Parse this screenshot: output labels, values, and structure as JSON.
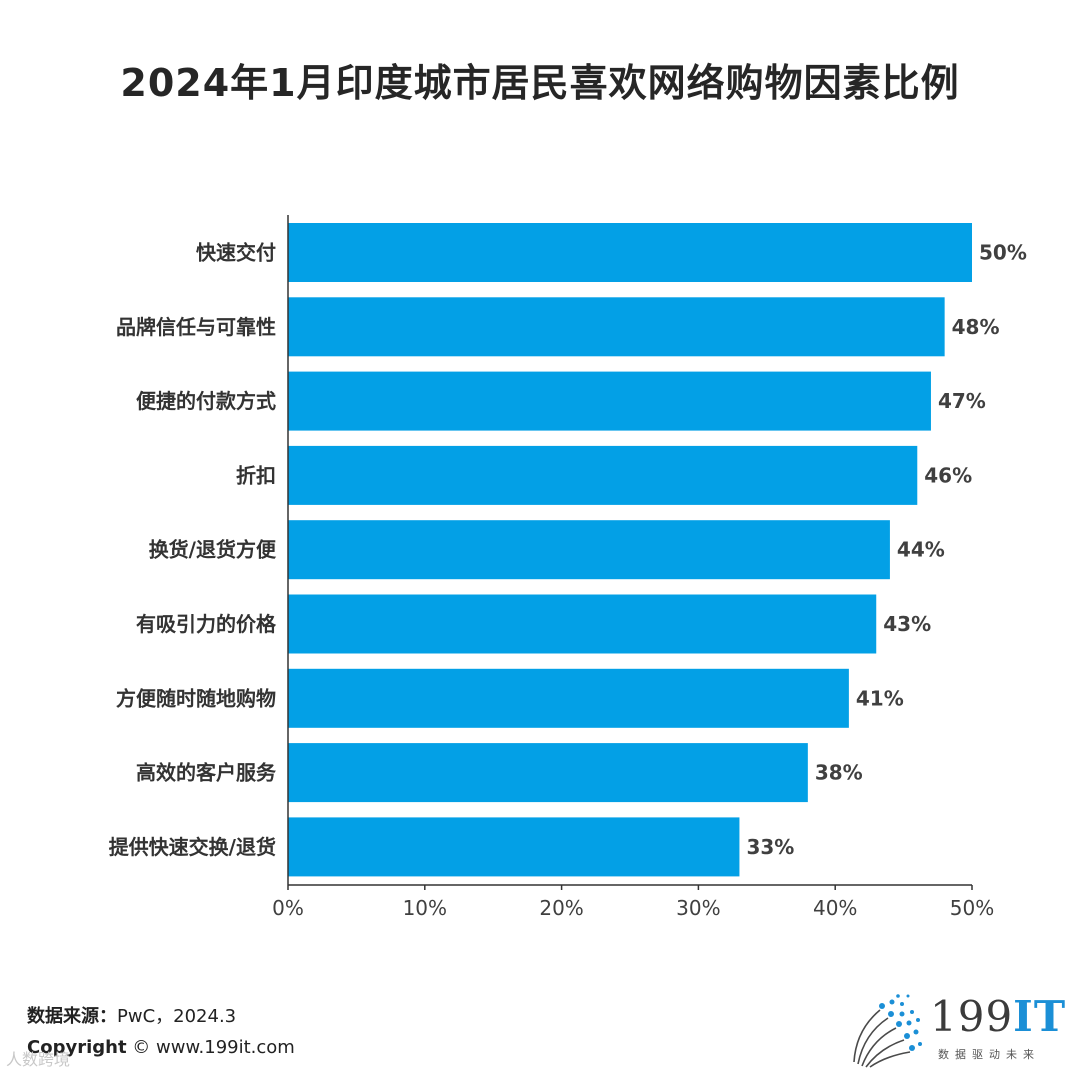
{
  "chart_data": {
    "type": "bar",
    "orientation": "horizontal",
    "title": "2024年1月印度城市居民喜欢网络购物因素比例",
    "categories": [
      "快速交付",
      "品牌信任与可靠性",
      "便捷的付款方式",
      "折扣",
      "换货/退货方便",
      "有吸引力的价格",
      "方便随时随地购物",
      "高效的客户服务",
      "提供快速交换/退货"
    ],
    "values": [
      50,
      48,
      47,
      46,
      44,
      43,
      41,
      38,
      33
    ],
    "value_labels": [
      "50%",
      "48%",
      "47%",
      "46%",
      "44%",
      "43%",
      "41%",
      "38%",
      "33%"
    ],
    "x_ticks": [
      "0%",
      "10%",
      "20%",
      "30%",
      "40%",
      "50%"
    ],
    "xlim": [
      0,
      50
    ],
    "xlabel": "",
    "ylabel": "",
    "grid": false,
    "bar_color": "#03a0e6"
  },
  "footer": {
    "source_label": "数据来源：",
    "source_value": "PwC，2024.3",
    "copyright_label": "Copyright",
    "copyright_value": "© www.199it.com"
  },
  "logo": {
    "name": "199",
    "name_accent": "IT",
    "tagline": "数据驱动未来",
    "icon": "dot-fan-logo-icon"
  },
  "watermark": "人数跨境"
}
